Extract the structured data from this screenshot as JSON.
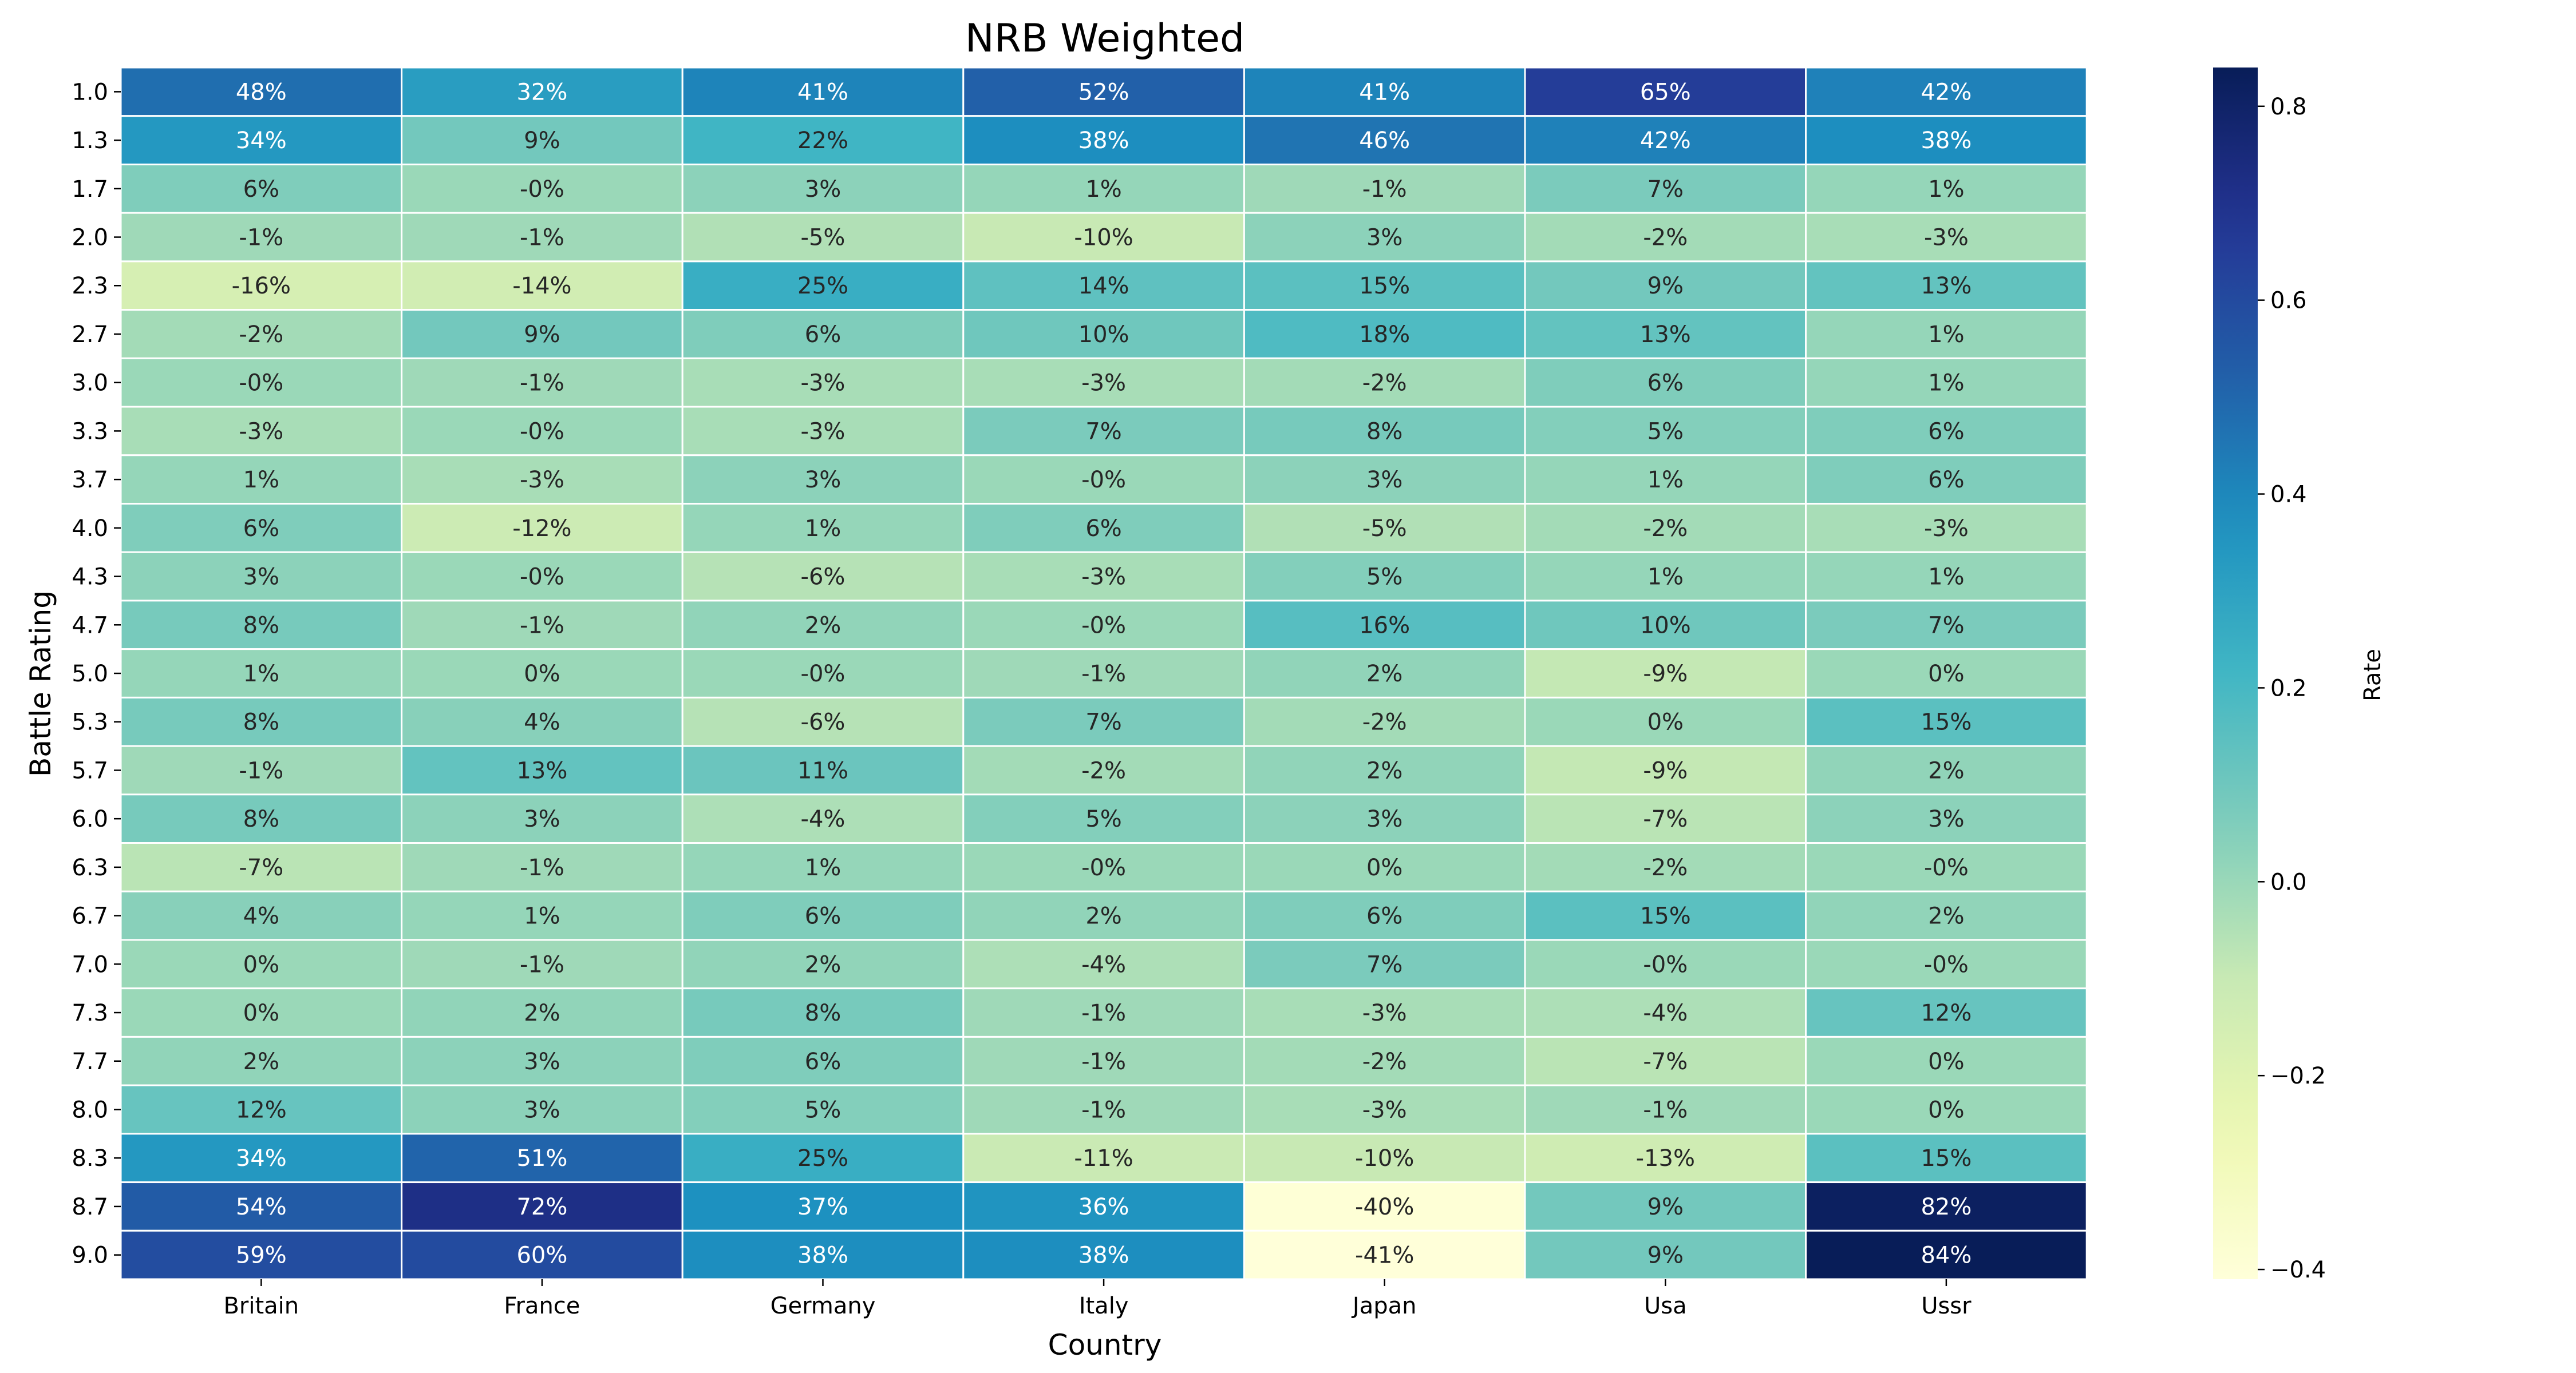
{
  "chart_data": {
    "type": "heatmap",
    "title": "NRB Weighted",
    "xlabel": "Country",
    "ylabel": "Battle Rating",
    "colorbar_label": "Rate",
    "colormap": "YlGnBu",
    "vmin": -0.41,
    "vmax": 0.84,
    "colorbar_ticks": [
      "0.8",
      "0.6",
      "0.4",
      "0.2",
      "0.0",
      "−0.2",
      "−0.4"
    ],
    "colorbar_tick_values": [
      0.8,
      0.6,
      0.4,
      0.2,
      0.0,
      -0.2,
      -0.4
    ],
    "x_categories": [
      "Britain",
      "France",
      "Germany",
      "Italy",
      "Japan",
      "Usa",
      "Ussr"
    ],
    "y_categories": [
      "1.0",
      "1.3",
      "1.7",
      "2.0",
      "2.3",
      "2.7",
      "3.0",
      "3.3",
      "3.7",
      "4.0",
      "4.3",
      "4.7",
      "5.0",
      "5.3",
      "5.7",
      "6.0",
      "6.3",
      "6.7",
      "7.0",
      "7.3",
      "7.7",
      "8.0",
      "8.3",
      "8.7",
      "9.0"
    ],
    "values": [
      [
        0.48,
        0.32,
        0.41,
        0.52,
        0.41,
        0.65,
        0.42
      ],
      [
        0.34,
        0.09,
        0.22,
        0.38,
        0.46,
        0.42,
        0.38
      ],
      [
        0.06,
        -0.0,
        0.03,
        0.01,
        -0.01,
        0.07,
        0.01
      ],
      [
        -0.01,
        -0.01,
        -0.05,
        -0.1,
        0.03,
        -0.02,
        -0.03
      ],
      [
        -0.16,
        -0.14,
        0.25,
        0.14,
        0.15,
        0.09,
        0.13
      ],
      [
        -0.02,
        0.09,
        0.06,
        0.1,
        0.18,
        0.13,
        0.01
      ],
      [
        -0.0,
        -0.01,
        -0.03,
        -0.03,
        -0.02,
        0.06,
        0.01
      ],
      [
        -0.03,
        -0.0,
        -0.03,
        0.07,
        0.08,
        0.05,
        0.06
      ],
      [
        0.01,
        -0.03,
        0.03,
        -0.0,
        0.03,
        0.01,
        0.06
      ],
      [
        0.06,
        -0.12,
        0.01,
        0.06,
        -0.05,
        -0.02,
        -0.03
      ],
      [
        0.03,
        -0.0,
        -0.06,
        -0.03,
        0.05,
        0.01,
        0.01
      ],
      [
        0.08,
        -0.01,
        0.02,
        -0.0,
        0.16,
        0.1,
        0.07
      ],
      [
        0.01,
        0.0,
        -0.0,
        -0.01,
        0.02,
        -0.09,
        0.0
      ],
      [
        0.08,
        0.04,
        -0.06,
        0.07,
        -0.02,
        0.0,
        0.15
      ],
      [
        -0.01,
        0.13,
        0.11,
        -0.02,
        0.02,
        -0.09,
        0.02
      ],
      [
        0.08,
        0.03,
        -0.04,
        0.05,
        0.03,
        -0.07,
        0.03
      ],
      [
        -0.07,
        -0.01,
        0.01,
        -0.0,
        0.0,
        -0.02,
        -0.0
      ],
      [
        0.04,
        0.01,
        0.06,
        0.02,
        0.06,
        0.15,
        0.02
      ],
      [
        0.0,
        -0.01,
        0.02,
        -0.04,
        0.07,
        -0.0,
        -0.0
      ],
      [
        0.0,
        0.02,
        0.08,
        -0.01,
        -0.03,
        -0.04,
        0.12
      ],
      [
        0.02,
        0.03,
        0.06,
        -0.01,
        -0.02,
        -0.07,
        0.0
      ],
      [
        0.12,
        0.03,
        0.05,
        -0.01,
        -0.03,
        -0.01,
        0.0
      ],
      [
        0.34,
        0.51,
        0.25,
        -0.11,
        -0.1,
        -0.13,
        0.15
      ],
      [
        0.54,
        0.72,
        0.37,
        0.36,
        -0.4,
        0.09,
        0.82
      ],
      [
        0.59,
        0.6,
        0.38,
        0.38,
        -0.41,
        0.09,
        0.84
      ]
    ],
    "cell_labels": [
      [
        "48%",
        "32%",
        "41%",
        "52%",
        "41%",
        "65%",
        "42%"
      ],
      [
        "34%",
        "9%",
        "22%",
        "38%",
        "46%",
        "42%",
        "38%"
      ],
      [
        "6%",
        "-0%",
        "3%",
        "1%",
        "-1%",
        "7%",
        "1%"
      ],
      [
        "-1%",
        "-1%",
        "-5%",
        "-10%",
        "3%",
        "-2%",
        "-3%"
      ],
      [
        "-16%",
        "-14%",
        "25%",
        "14%",
        "15%",
        "9%",
        "13%"
      ],
      [
        "-2%",
        "9%",
        "6%",
        "10%",
        "18%",
        "13%",
        "1%"
      ],
      [
        "-0%",
        "-1%",
        "-3%",
        "-3%",
        "-2%",
        "6%",
        "1%"
      ],
      [
        "-3%",
        "-0%",
        "-3%",
        "7%",
        "8%",
        "5%",
        "6%"
      ],
      [
        "1%",
        "-3%",
        "3%",
        "-0%",
        "3%",
        "1%",
        "6%"
      ],
      [
        "6%",
        "-12%",
        "1%",
        "6%",
        "-5%",
        "-2%",
        "-3%"
      ],
      [
        "3%",
        "-0%",
        "-6%",
        "-3%",
        "5%",
        "1%",
        "1%"
      ],
      [
        "8%",
        "-1%",
        "2%",
        "-0%",
        "16%",
        "10%",
        "7%"
      ],
      [
        "1%",
        "0%",
        "-0%",
        "-1%",
        "2%",
        "-9%",
        "0%"
      ],
      [
        "8%",
        "4%",
        "-6%",
        "7%",
        "-2%",
        "0%",
        "15%"
      ],
      [
        "-1%",
        "13%",
        "11%",
        "-2%",
        "2%",
        "-9%",
        "2%"
      ],
      [
        "8%",
        "3%",
        "-4%",
        "5%",
        "3%",
        "-7%",
        "3%"
      ],
      [
        "-7%",
        "-1%",
        "1%",
        "-0%",
        "0%",
        "-2%",
        "-0%"
      ],
      [
        "4%",
        "1%",
        "6%",
        "2%",
        "6%",
        "15%",
        "2%"
      ],
      [
        "0%",
        "-1%",
        "2%",
        "-4%",
        "7%",
        "-0%",
        "-0%"
      ],
      [
        "0%",
        "2%",
        "8%",
        "-1%",
        "-3%",
        "-4%",
        "12%"
      ],
      [
        "2%",
        "3%",
        "6%",
        "-1%",
        "-2%",
        "-7%",
        "0%"
      ],
      [
        "12%",
        "3%",
        "5%",
        "-1%",
        "-3%",
        "-1%",
        "0%"
      ],
      [
        "34%",
        "51%",
        "25%",
        "-11%",
        "-10%",
        "-13%",
        "15%"
      ],
      [
        "54%",
        "72%",
        "37%",
        "36%",
        "-40%",
        "9%",
        "82%"
      ],
      [
        "59%",
        "60%",
        "38%",
        "38%",
        "-41%",
        "9%",
        "84%"
      ]
    ],
    "grid": true,
    "legend_position": "right"
  }
}
